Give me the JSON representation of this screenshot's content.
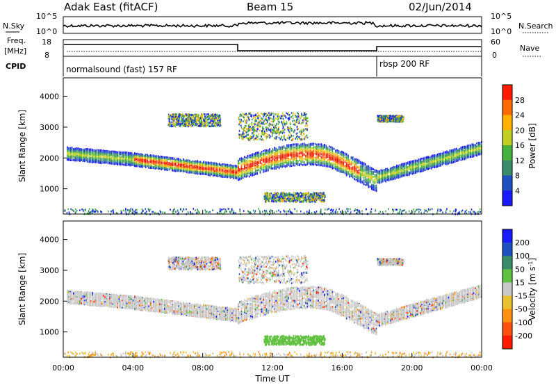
{
  "header": {
    "station": "Adak East (fitACF)",
    "beam": "Beam 15",
    "date": "02/Jun/2014"
  },
  "strip": {
    "nsky_label": "N.Sky",
    "nsky_ticks": [
      "10^5",
      "10^0"
    ],
    "nsearch_label": "N.Search",
    "nsearch_ticks": [
      "10^5",
      "10^0"
    ],
    "freq_label_1": "Freq.",
    "freq_label_2": "[MHz]",
    "freq_ticks": [
      "18",
      "8"
    ],
    "nave_label": "Nave",
    "nave_ticks": [
      "60",
      "0"
    ],
    "cpid_label": "CPID",
    "cpid_1": "normalsound (fast) 157 RF",
    "cpid_2": "rbsp 200 RF"
  },
  "chart_data": [
    {
      "type": "heatmap",
      "ylabel": "Slant Range [km]",
      "ylim": [
        180,
        4600
      ],
      "yticks": [
        "1000",
        "2000",
        "3000",
        "4000"
      ],
      "colorbar_label": "Power [dB]",
      "colorbar_ticks": [
        "4",
        "8",
        "12",
        "16",
        "20",
        "24",
        "28"
      ],
      "colors": [
        "#1a1aff",
        "#2050c0",
        "#3a8a6a",
        "#44b040",
        "#c0d020",
        "#ffb000",
        "#ff6a00",
        "#ff1a00"
      ]
    },
    {
      "type": "heatmap",
      "ylabel": "Slant Range [km]",
      "ylim": [
        180,
        4600
      ],
      "yticks": [
        "1000",
        "2000",
        "3000",
        "4000"
      ],
      "colorbar_label": "Velocity [m s^-1]",
      "colorbar_ticks": [
        "200",
        "100",
        "50",
        "15",
        "-15",
        "-50",
        "-100",
        "-200"
      ],
      "colors": [
        "#1a1aff",
        "#2050c0",
        "#3a8a6a",
        "#60c040",
        "#c8c8c8",
        "#e8c030",
        "#ff9010",
        "#ff5010",
        "#ff1a00"
      ],
      "xlabel": "Time UT",
      "xticks": [
        "00:00",
        "04:00",
        "08:00",
        "12:00",
        "16:00",
        "20:00",
        "00:00"
      ]
    }
  ]
}
